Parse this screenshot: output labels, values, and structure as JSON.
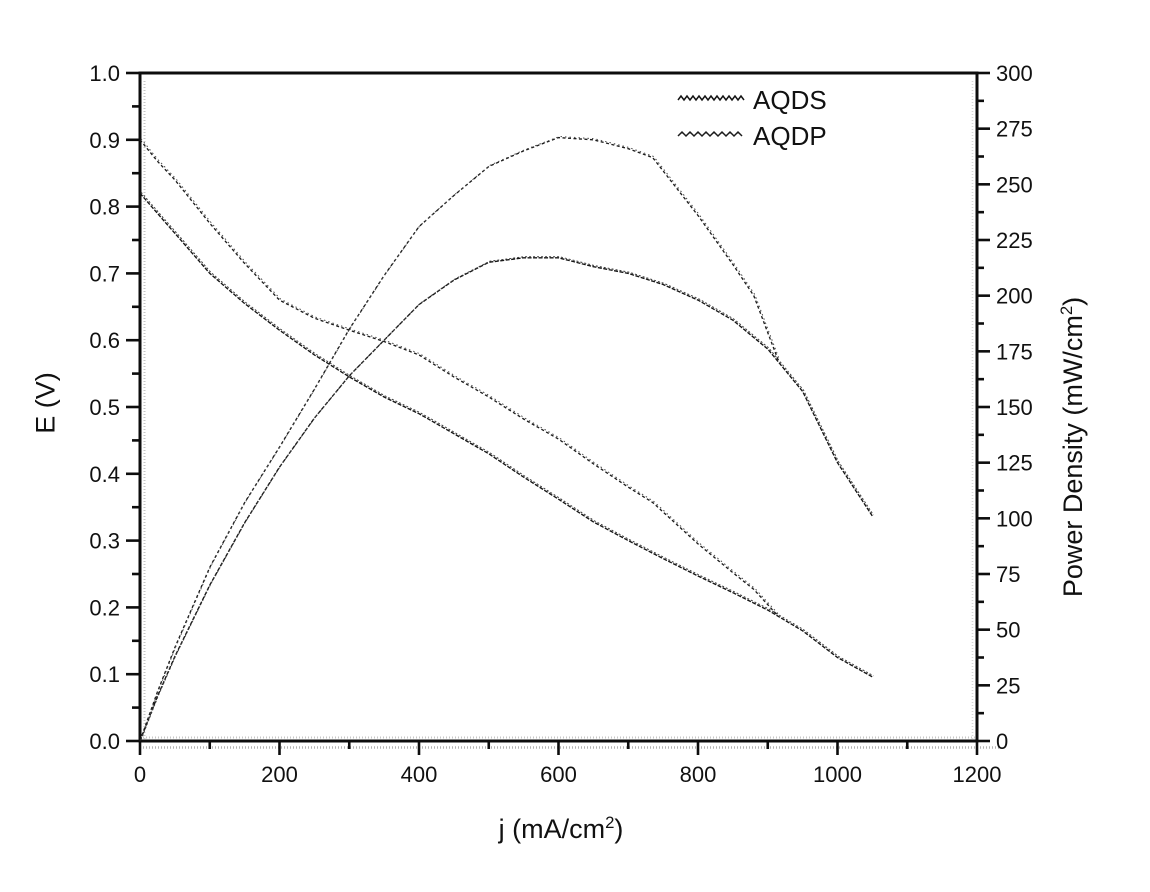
{
  "chart_data": {
    "type": "line",
    "title": "",
    "xlabel": {
      "main": "j (mA/cm",
      "sup": "2",
      "end": ")"
    },
    "ylabel_left": "E (V)",
    "ylabel_right": {
      "main": "Power Density (mW/cm",
      "sup": "2",
      "end": ")"
    },
    "grid": false,
    "background": "#ffffff",
    "line_color": "#1a1a1a",
    "x_axis": {
      "min": 0,
      "max": 1200,
      "major_tick_step": 200,
      "minor_tick_step": 100,
      "tick_labels": [
        "0",
        "200",
        "400",
        "600",
        "800",
        "1000",
        "1200"
      ]
    },
    "y_left_axis": {
      "min": 0.0,
      "max": 1.0,
      "major_tick_step": 0.1,
      "minor_tick_step": 0.05,
      "tick_labels": [
        "0.0",
        "0.1",
        "0.2",
        "0.3",
        "0.4",
        "0.5",
        "0.6",
        "0.7",
        "0.8",
        "0.9",
        "1.0"
      ]
    },
    "y_right_axis": {
      "min": 0,
      "max": 300,
      "major_tick_step": 25,
      "minor_tick_step": 12.5,
      "tick_labels": [
        "0",
        "25",
        "50",
        "75",
        "100",
        "125",
        "150",
        "175",
        "200",
        "225",
        "250",
        "275",
        "300"
      ]
    },
    "legend": {
      "position": "top-right",
      "entries": [
        "AQDS",
        "AQDP"
      ]
    },
    "series": [
      {
        "name": "AQDS polarization",
        "legend": "AQDS",
        "axis": "left",
        "x": [
          0,
          25,
          50,
          100,
          150,
          200,
          250,
          300,
          350,
          400,
          450,
          500,
          550,
          600,
          650,
          700,
          750,
          800,
          850,
          900,
          950,
          1000,
          1050
        ],
        "y": [
          0.82,
          0.79,
          0.76,
          0.7,
          0.655,
          0.615,
          0.578,
          0.545,
          0.515,
          0.49,
          0.46,
          0.43,
          0.395,
          0.362,
          0.328,
          0.3,
          0.273,
          0.247,
          0.222,
          0.196,
          0.165,
          0.125,
          0.096
        ]
      },
      {
        "name": "AQDP polarization",
        "legend": "AQDP",
        "axis": "left",
        "x": [
          0,
          25,
          50,
          100,
          150,
          200,
          250,
          300,
          350,
          400,
          450,
          500,
          550,
          600,
          650,
          700,
          735,
          800,
          850,
          880,
          915
        ],
        "y": [
          0.9,
          0.868,
          0.84,
          0.775,
          0.715,
          0.66,
          0.633,
          0.615,
          0.598,
          0.578,
          0.545,
          0.515,
          0.482,
          0.452,
          0.415,
          0.38,
          0.357,
          0.295,
          0.252,
          0.227,
          0.187
        ]
      },
      {
        "name": "AQDS power density",
        "legend": "AQDS",
        "axis": "right",
        "x": [
          0,
          25,
          50,
          100,
          150,
          200,
          250,
          300,
          350,
          400,
          450,
          500,
          550,
          600,
          650,
          700,
          750,
          800,
          850,
          900,
          950,
          1000,
          1050
        ],
        "y": [
          0,
          20,
          38,
          70,
          98,
          123,
          145,
          164,
          180,
          196,
          207,
          215,
          217,
          217,
          213,
          210,
          205,
          198,
          189,
          176,
          157,
          125,
          101
        ]
      },
      {
        "name": "AQDP power density",
        "legend": "AQDP",
        "axis": "right",
        "x": [
          0,
          25,
          50,
          100,
          150,
          200,
          250,
          300,
          350,
          400,
          450,
          500,
          550,
          600,
          650,
          700,
          735,
          800,
          850,
          880,
          915
        ],
        "y": [
          0,
          22,
          42,
          78,
          107,
          132,
          158,
          185,
          209,
          231,
          245,
          258,
          265,
          271,
          270,
          266,
          262,
          236,
          214,
          200,
          171
        ]
      }
    ]
  }
}
